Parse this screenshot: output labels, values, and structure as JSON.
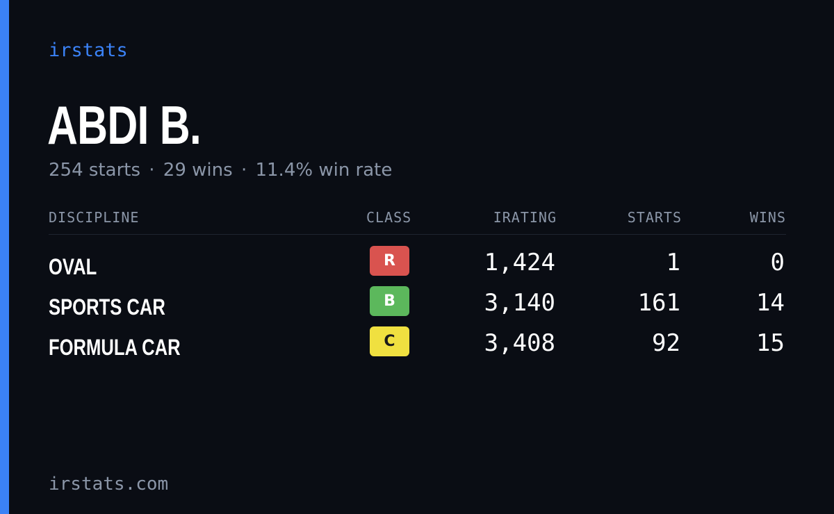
{
  "brand": "irstats",
  "player": {
    "name": "ABDI B."
  },
  "summary": {
    "starts": "254 starts",
    "wins": "29 wins",
    "win_rate": "11.4% win rate",
    "separator": "·"
  },
  "table": {
    "headers": {
      "discipline": "DISCIPLINE",
      "class": "CLASS",
      "irating": "IRATING",
      "starts": "STARTS",
      "wins": "WINS"
    },
    "rows": [
      {
        "discipline": "OVAL",
        "class": "R",
        "class_color": "#d9534f",
        "class_text_color": "#ffffff",
        "irating": "1,424",
        "starts": "1",
        "wins": "0"
      },
      {
        "discipline": "SPORTS CAR",
        "class": "B",
        "class_color": "#5cb85c",
        "class_text_color": "#ffffff",
        "irating": "3,140",
        "starts": "161",
        "wins": "14"
      },
      {
        "discipline": "FORMULA CAR",
        "class": "C",
        "class_color": "#f0e040",
        "class_text_color": "#1a1a1a",
        "irating": "3,408",
        "starts": "92",
        "wins": "15"
      }
    ]
  },
  "footer": {
    "url": "irstats.com"
  },
  "colors": {
    "background": "#0a0d14",
    "accent": "#3b82f6",
    "muted_text": "#8b96a8",
    "primary_text": "#ffffff"
  }
}
